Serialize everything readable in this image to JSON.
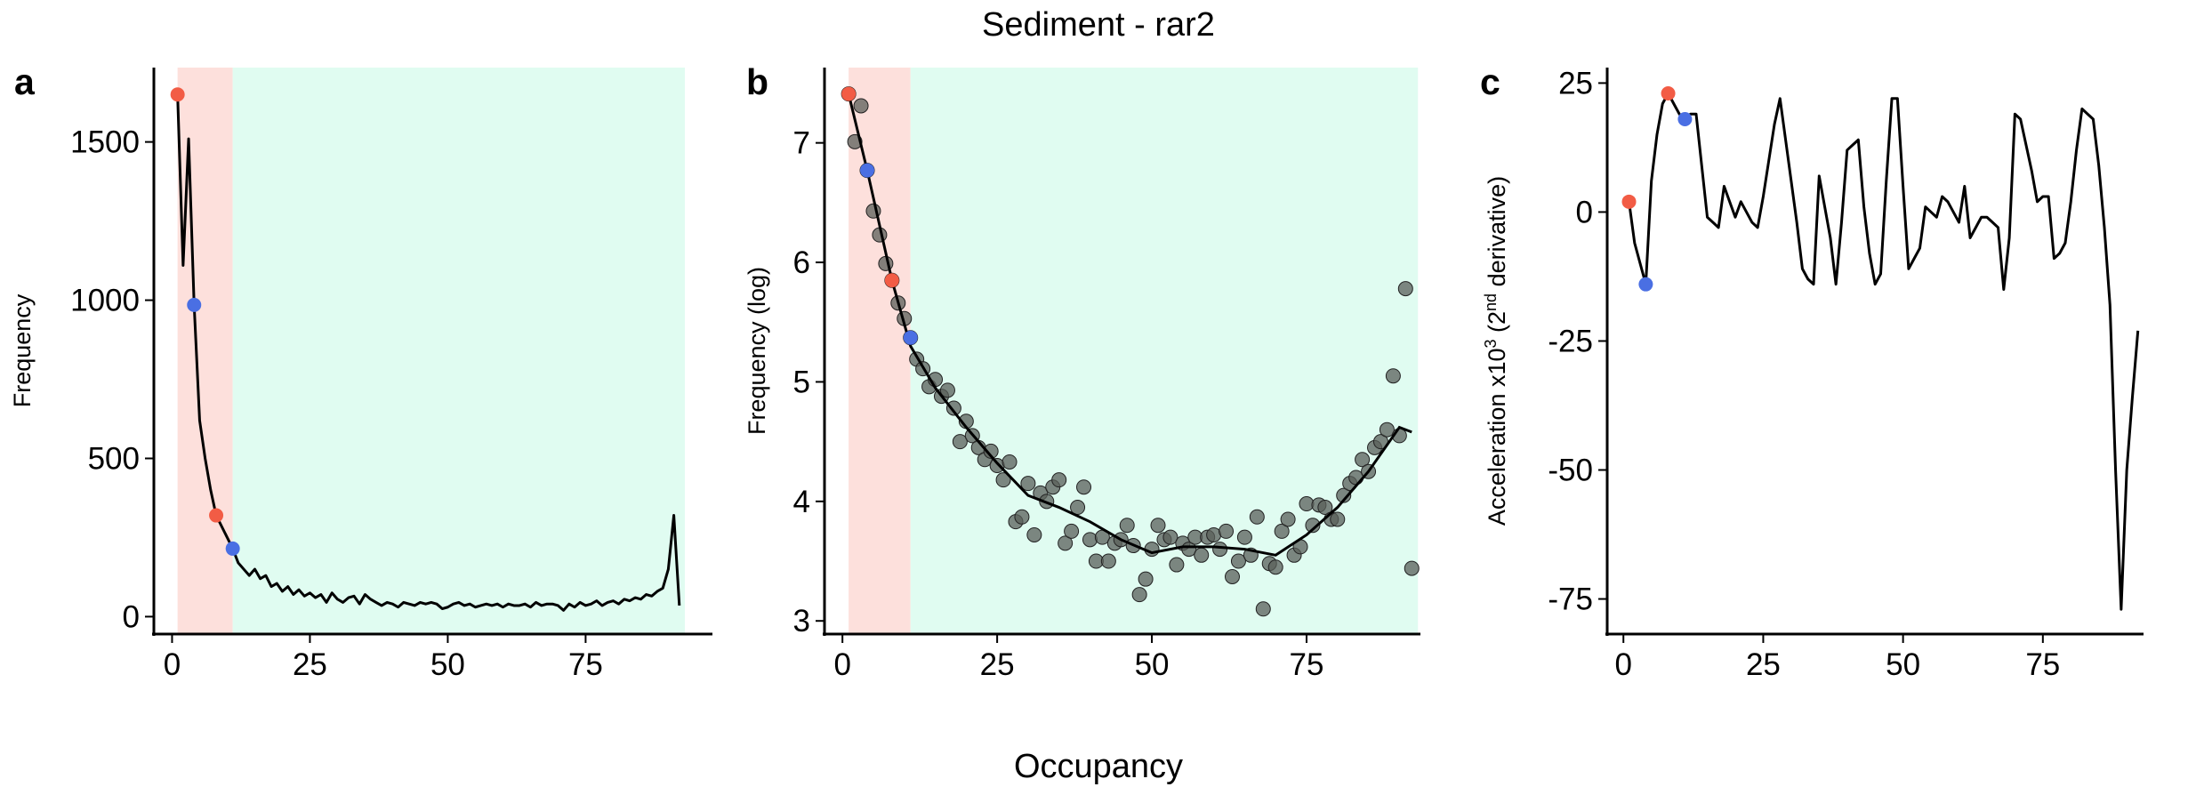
{
  "title": "Sediment - rar2",
  "xlabel": "Occupancy",
  "chart_data": [
    {
      "type": "line",
      "label": "a",
      "ylabel": [
        "Frequency"
      ],
      "color": "#000000",
      "xlim": [
        -3.3,
        98
      ],
      "ylim": [
        -55,
        1735
      ],
      "xticks": [
        0,
        25,
        50,
        75
      ],
      "yticks": [
        0,
        500,
        1000,
        1500
      ],
      "regions": [
        {
          "xlim": [
            1,
            11
          ],
          "color": "#fde0dc"
        },
        {
          "xlim": [
            11,
            93
          ],
          "color": "#e0fcf1"
        }
      ],
      "x": [
        1,
        2,
        3,
        4,
        5,
        6,
        7,
        8,
        9,
        10,
        11,
        12,
        13,
        14,
        15,
        16,
        17,
        18,
        19,
        20,
        21,
        22,
        23,
        24,
        25,
        26,
        27,
        28,
        29,
        30,
        31,
        32,
        33,
        34,
        35,
        36,
        37,
        38,
        39,
        40,
        41,
        42,
        43,
        44,
        45,
        46,
        47,
        48,
        49,
        50,
        51,
        52,
        53,
        54,
        55,
        56,
        57,
        58,
        59,
        60,
        61,
        62,
        63,
        64,
        65,
        66,
        67,
        68,
        69,
        70,
        71,
        72,
        73,
        74,
        75,
        76,
        77,
        78,
        79,
        80,
        81,
        82,
        83,
        84,
        85,
        86,
        87,
        88,
        89,
        90,
        91,
        92
      ],
      "values": [
        1650,
        1110,
        1510,
        985,
        620,
        500,
        400,
        320,
        285,
        250,
        215,
        170,
        150,
        130,
        150,
        120,
        130,
        95,
        105,
        80,
        95,
        70,
        85,
        65,
        75,
        60,
        70,
        45,
        75,
        55,
        45,
        60,
        65,
        40,
        70,
        55,
        45,
        35,
        45,
        40,
        30,
        45,
        40,
        35,
        45,
        40,
        45,
        40,
        25,
        30,
        40,
        45,
        35,
        40,
        30,
        35,
        40,
        35,
        40,
        30,
        40,
        35,
        35,
        40,
        30,
        45,
        35,
        40,
        40,
        35,
        20,
        40,
        30,
        45,
        35,
        40,
        50,
        35,
        45,
        50,
        40,
        55,
        50,
        60,
        55,
        70,
        65,
        80,
        90,
        150,
        320,
        35
      ],
      "highlights": {
        "x": [
          1,
          4,
          8,
          11
        ],
        "values": [
          1650,
          985,
          320,
          215
        ],
        "colors": [
          "#f25c45",
          "#4a6fe3",
          "#f25c45",
          "#4a6fe3"
        ]
      }
    },
    {
      "type": "scatter",
      "label": "b",
      "ylabel": [
        "Frequency (log)"
      ],
      "color": "#5a5f5a",
      "fit_color": "#000000",
      "xlim": [
        -2.9,
        93.4
      ],
      "ylim": [
        2.89,
        7.63
      ],
      "xticks": [
        0,
        25,
        50,
        75
      ],
      "yticks": [
        3,
        4,
        5,
        6,
        7
      ],
      "regions": [
        {
          "xlim": [
            1,
            11
          ],
          "color": "#fde0dc"
        },
        {
          "xlim": [
            11,
            93
          ],
          "color": "#e0fcf1"
        }
      ],
      "x": [
        1,
        2,
        3,
        4,
        5,
        6,
        7,
        8,
        9,
        10,
        11,
        12,
        13,
        14,
        15,
        16,
        17,
        18,
        19,
        20,
        21,
        22,
        23,
        24,
        25,
        26,
        27,
        28,
        29,
        30,
        31,
        32,
        33,
        34,
        35,
        36,
        37,
        38,
        39,
        40,
        41,
        42,
        43,
        44,
        45,
        46,
        47,
        48,
        49,
        50,
        51,
        52,
        53,
        54,
        55,
        56,
        57,
        58,
        59,
        60,
        61,
        62,
        63,
        64,
        65,
        66,
        67,
        68,
        69,
        70,
        71,
        72,
        73,
        74,
        75,
        76,
        77,
        78,
        79,
        80,
        81,
        82,
        83,
        84,
        85,
        86,
        87,
        88,
        89,
        90,
        91,
        92
      ],
      "values": [
        7.41,
        7.01,
        7.31,
        6.77,
        6.43,
        6.23,
        5.99,
        5.85,
        5.66,
        5.53,
        5.37,
        5.19,
        5.11,
        4.96,
        5.02,
        4.88,
        4.93,
        4.78,
        4.5,
        4.67,
        4.55,
        4.45,
        4.35,
        4.42,
        4.3,
        4.18,
        4.33,
        3.83,
        3.87,
        4.15,
        3.72,
        4.07,
        4.0,
        4.12,
        4.18,
        3.65,
        3.75,
        3.95,
        4.12,
        3.68,
        3.5,
        3.7,
        3.5,
        3.65,
        3.68,
        3.8,
        3.63,
        3.22,
        3.35,
        3.6,
        3.8,
        3.68,
        3.7,
        3.47,
        3.65,
        3.6,
        3.7,
        3.55,
        3.7,
        3.72,
        3.6,
        3.75,
        3.37,
        3.5,
        3.7,
        3.55,
        3.87,
        3.1,
        3.48,
        3.45,
        3.75,
        3.85,
        3.55,
        3.62,
        3.98,
        3.8,
        3.97,
        3.95,
        3.85,
        3.85,
        4.05,
        4.15,
        4.2,
        4.35,
        4.25,
        4.45,
        4.5,
        4.6,
        5.05,
        4.55,
        5.78,
        3.44
      ],
      "fit_x": [
        1,
        4,
        8,
        11,
        15,
        20,
        25,
        30,
        35,
        40,
        45,
        50,
        55,
        60,
        65,
        70,
        75,
        80,
        85,
        90,
        92
      ],
      "fit": [
        7.41,
        6.77,
        5.85,
        5.3,
        4.95,
        4.62,
        4.32,
        4.05,
        3.95,
        3.83,
        3.68,
        3.57,
        3.62,
        3.62,
        3.6,
        3.55,
        3.72,
        3.95,
        4.25,
        4.62,
        4.58
      ],
      "highlights": {
        "x": [
          1,
          4,
          8,
          11
        ],
        "values": [
          7.41,
          6.77,
          5.85,
          5.37
        ],
        "colors": [
          "#f25c45",
          "#4a6fe3",
          "#f25c45",
          "#4a6fe3"
        ]
      }
    },
    {
      "type": "line",
      "label": "c",
      "ylabel": [
        "Acceleration x10",
        "3",
        " (2",
        "nd",
        " derivative)"
      ],
      "color": "#000000",
      "xlim": [
        -2.9,
        93
      ],
      "ylim": [
        -81.8,
        28
      ],
      "xticks": [
        0,
        25,
        50,
        75
      ],
      "yticks": [
        25,
        0,
        -25,
        -50,
        -75
      ],
      "x": [
        1,
        2,
        3,
        4,
        5,
        6,
        7,
        8,
        9,
        10,
        11,
        12,
        13,
        14,
        15,
        16,
        17,
        18,
        19,
        20,
        21,
        22,
        23,
        24,
        25,
        26,
        27,
        28,
        29,
        30,
        31,
        32,
        33,
        34,
        35,
        36,
        37,
        38,
        39,
        40,
        41,
        42,
        43,
        44,
        45,
        46,
        47,
        48,
        49,
        50,
        51,
        52,
        53,
        54,
        55,
        56,
        57,
        58,
        59,
        60,
        61,
        62,
        63,
        64,
        65,
        66,
        67,
        68,
        69,
        70,
        71,
        72,
        73,
        74,
        75,
        76,
        77,
        78,
        79,
        80,
        81,
        82,
        83,
        84,
        85,
        86,
        87,
        88,
        89,
        90,
        91,
        92
      ],
      "values": [
        2,
        -6,
        -10,
        -14,
        6,
        15,
        21,
        23,
        21,
        19,
        18,
        19,
        19,
        9,
        -1,
        -2,
        -3,
        5,
        2,
        -1,
        2,
        0,
        -2,
        -3,
        3,
        10,
        17,
        22,
        14,
        6,
        -2,
        -11,
        -13,
        -14,
        7,
        1,
        -5,
        -14,
        -2,
        12,
        13,
        14,
        1,
        -8,
        -14,
        -12,
        6,
        22,
        22,
        5,
        -11,
        -9,
        -7,
        1,
        0,
        -1,
        3,
        2,
        0,
        -2,
        5,
        -5,
        -3,
        -1,
        -1,
        -2,
        -3,
        -15,
        -5,
        19,
        18,
        13,
        8,
        2,
        3,
        3,
        -9,
        -8,
        -6,
        2,
        12,
        20,
        19,
        18,
        9,
        -3,
        -18,
        -50,
        -77,
        -50,
        -36,
        -23
      ],
      "highlights": {
        "x": [
          1,
          4,
          8,
          11
        ],
        "values": [
          2,
          -14,
          23,
          18
        ],
        "colors": [
          "#f25c45",
          "#4a6fe3",
          "#f25c45",
          "#4a6fe3"
        ]
      }
    }
  ]
}
